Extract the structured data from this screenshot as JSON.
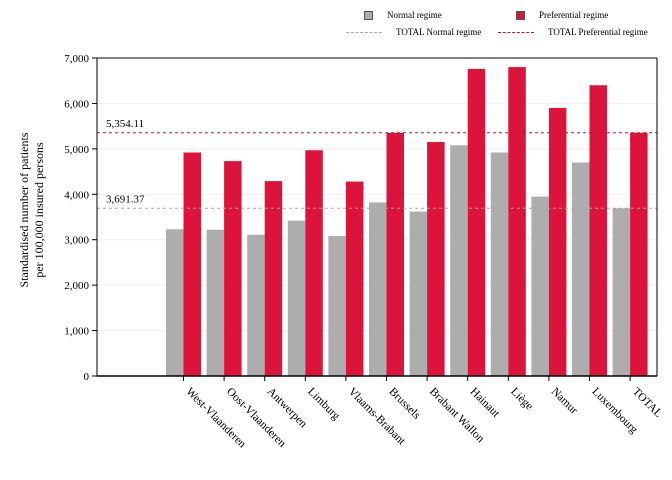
{
  "colors": {
    "normal": "#adadad",
    "preferential": "#dc143c",
    "normal_line": "#a8a8a8",
    "preferential_line": "#c8103a"
  },
  "legend": {
    "normal": "Normal regime",
    "preferential": "Preferential regime",
    "total_normal": "TOTAL Normal regime",
    "total_preferential": "TOTAL Preferential regime"
  },
  "chart_data": {
    "type": "bar",
    "title": "",
    "xlabel": "",
    "ylabel_lines": [
      "Standardised number of patients",
      "per 100,000 insured persons"
    ],
    "ylim": [
      0,
      7000
    ],
    "yticks": [
      0,
      1000,
      2000,
      3000,
      4000,
      5000,
      6000,
      7000
    ],
    "ytick_labels": [
      "0",
      "1,000",
      "2,000",
      "3,000",
      "4,000",
      "5,000",
      "6,000",
      "7,000"
    ],
    "categories": [
      "West-Vlaanderen",
      "Oost-Vlaanderen",
      "Antwerpen",
      "Limburg",
      "Vlaams-Brabant",
      "Brussels",
      "Brabant Wallon",
      "Hainaut",
      "Liège",
      "Namur",
      "Luxembourg",
      "TOTAL"
    ],
    "series": [
      {
        "name": "Normal regime",
        "values": [
          3230,
          3220,
          3110,
          3420,
          3080,
          3820,
          3620,
          5080,
          4920,
          3950,
          4700,
          3691.37
        ]
      },
      {
        "name": "Preferential regime",
        "values": [
          4920,
          4730,
          4290,
          4970,
          4280,
          5350,
          5150,
          6760,
          6800,
          5900,
          6400,
          5354.11
        ]
      }
    ],
    "reference_lines": [
      {
        "name": "TOTAL Normal regime",
        "value": 3691.37,
        "label": "3,691.37"
      },
      {
        "name": "TOTAL Preferential regime",
        "value": 5354.11,
        "label": "5,354.11"
      }
    ],
    "grid": true,
    "legend_position": "top-right"
  }
}
